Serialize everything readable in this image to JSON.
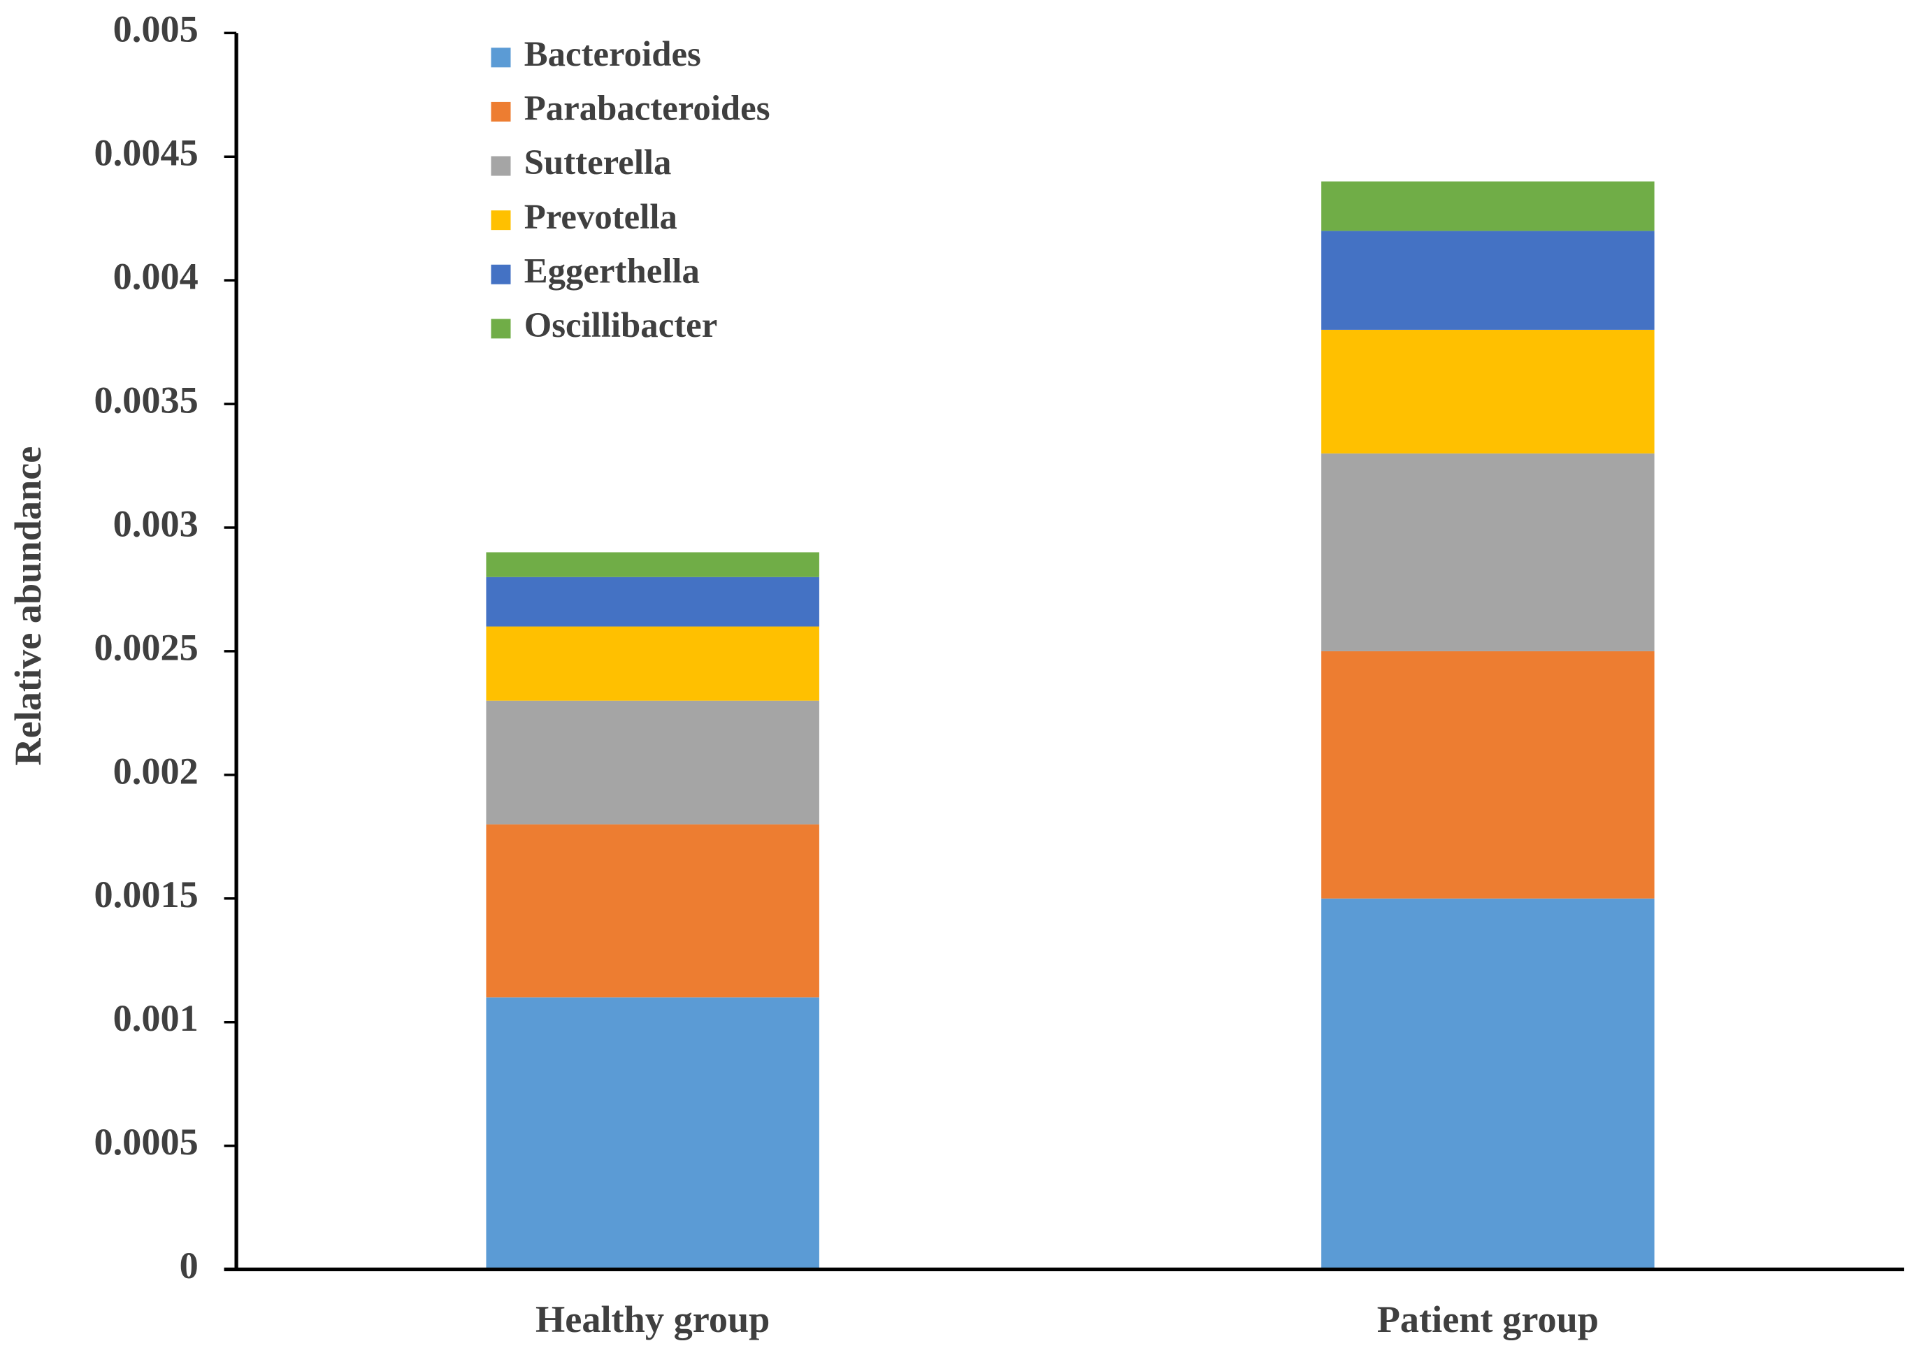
{
  "chart_data": {
    "type": "stacked_bar",
    "y_label": "Relative abundance",
    "categories": [
      "Healthy group",
      "Patient group"
    ],
    "series": [
      {
        "name": "Bacteroides",
        "color": "#5b9bd5",
        "values": [
          0.0011,
          0.0015
        ]
      },
      {
        "name": "Parabacteroides",
        "color": "#ed7d31",
        "values": [
          0.0007,
          0.001
        ]
      },
      {
        "name": "Sutterella",
        "color": "#a5a5a5",
        "values": [
          0.0005,
          0.0008
        ]
      },
      {
        "name": "Prevotella",
        "color": "#ffc000",
        "values": [
          0.0003,
          0.0005
        ]
      },
      {
        "name": "Eggerthella",
        "color": "#4472c4",
        "values": [
          0.0002,
          0.0004
        ]
      },
      {
        "name": "Oscillibacter",
        "color": "#70ad47",
        "values": [
          0.0001,
          0.0002
        ]
      }
    ],
    "ylim": [
      0,
      0.005
    ],
    "yticks": [
      0,
      0.0005,
      0.001,
      0.0015,
      0.002,
      0.0025,
      0.003,
      0.0035,
      0.004,
      0.0045,
      0.005
    ],
    "grid": false,
    "legend": "top-left"
  }
}
